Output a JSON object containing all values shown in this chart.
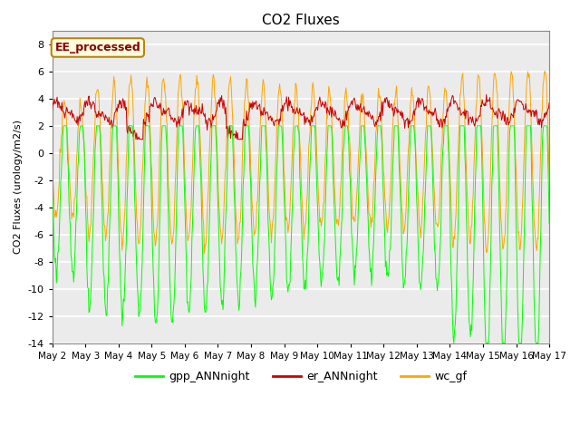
{
  "title": "CO2 Fluxes",
  "ylabel": "CO2 Fluxes (urology/m2/s)",
  "ylim": [
    -14,
    9
  ],
  "yticks": [
    -14,
    -12,
    -10,
    -8,
    -6,
    -4,
    -2,
    0,
    2,
    4,
    6,
    8
  ],
  "xticklabels": [
    "May 2",
    "May 3",
    "May 4",
    "May 5",
    "May 6",
    "May 7",
    "May 8",
    "May 9",
    "May 10",
    "May 11",
    "May 12",
    "May 13",
    "May 14",
    "May 15",
    "May 16",
    "May 17"
  ],
  "color_gpp": "#00FF00",
  "color_er": "#CC0000",
  "color_wc": "#FFA500",
  "plot_bg_color": "#EBEBEB",
  "grid_color": "#FFFFFF",
  "legend_label_gpp": "gpp_ANNnight",
  "legend_label_er": "er_ANNnight",
  "legend_label_wc": "wc_gf",
  "watermark_text": "EE_processed",
  "n_days": 15,
  "points_per_day": 48,
  "figsize": [
    6.4,
    4.8
  ],
  "dpi": 100
}
